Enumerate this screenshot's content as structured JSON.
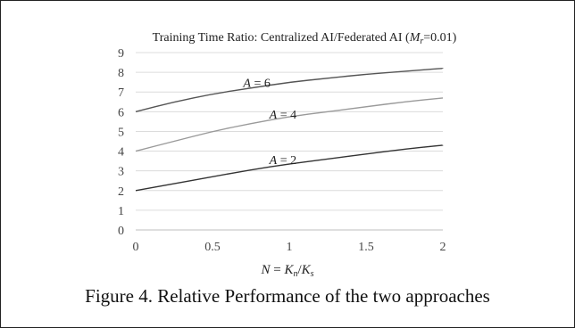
{
  "chart_data": {
    "type": "line",
    "title": "Training Time Ratio:  Centralized AI/Federated AI (Mᵣ=0.01)",
    "title_parts": {
      "prefix": "Training Time Ratio:  Centralized AI/Federated AI (",
      "var": "M",
      "sub": "r",
      "suffix": "=0.01)"
    },
    "xlabel": "N = Kₙ/Kₛ",
    "xlabel_parts": {
      "n": "N",
      "eq": " = ",
      "k1": "K",
      "sub1": "n",
      "slash": "/",
      "k2": "K",
      "sub2": "s"
    },
    "xlim": [
      0,
      2
    ],
    "ylim": [
      0,
      9
    ],
    "xticks": [
      0,
      0.5,
      1,
      1.5,
      2
    ],
    "xtick_labels": [
      "0",
      "0.5",
      "1",
      "1.5",
      "2"
    ],
    "yticks": [
      0,
      1,
      2,
      3,
      4,
      5,
      6,
      7,
      8,
      9
    ],
    "ytick_labels": [
      "0",
      "1",
      "2",
      "3",
      "4",
      "5",
      "6",
      "7",
      "8",
      "9"
    ],
    "grid": true,
    "series": [
      {
        "name": "A = 6",
        "label_var": "A",
        "label_rest": " = 6",
        "color": "#555555",
        "label_at": [
          0.7,
          7.25
        ],
        "x": [
          0,
          0.25,
          0.5,
          0.75,
          1,
          1.25,
          1.5,
          1.75,
          2
        ],
        "y": [
          6.0,
          6.5,
          6.9,
          7.2,
          7.5,
          7.7,
          7.9,
          8.05,
          8.2
        ]
      },
      {
        "name": "A = 4",
        "label_var": "A",
        "label_rest": " = 4",
        "color": "#9a9a9a",
        "label_at": [
          0.87,
          5.65
        ],
        "x": [
          0,
          0.25,
          0.5,
          0.75,
          1,
          1.25,
          1.5,
          1.75,
          2
        ],
        "y": [
          4.0,
          4.5,
          5.0,
          5.4,
          5.75,
          6.0,
          6.25,
          6.5,
          6.7
        ]
      },
      {
        "name": "A = 2",
        "label_var": "A",
        "label_rest": " = 2",
        "color": "#333333",
        "label_at": [
          0.87,
          3.35
        ],
        "x": [
          0,
          0.25,
          0.5,
          0.75,
          1,
          1.25,
          1.5,
          1.75,
          2
        ],
        "y": [
          2.0,
          2.35,
          2.7,
          3.05,
          3.35,
          3.6,
          3.85,
          4.1,
          4.3
        ]
      }
    ]
  },
  "caption": "Figure 4. Relative Performance of the two approaches"
}
